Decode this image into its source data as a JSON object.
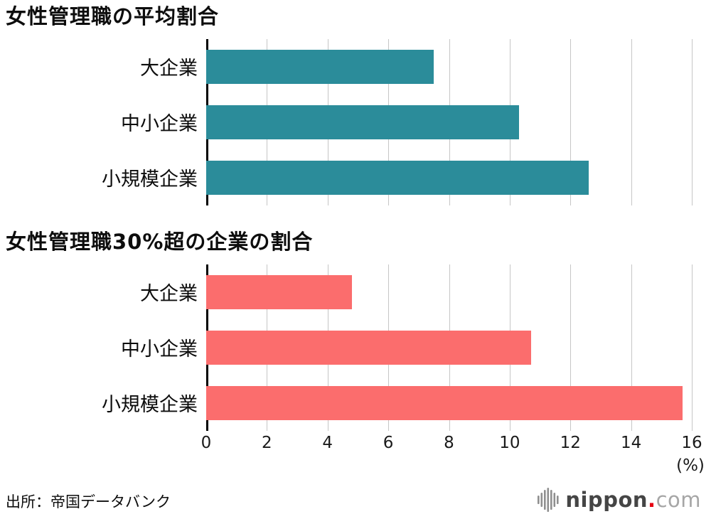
{
  "chart_data": [
    {
      "type": "bar",
      "orientation": "horizontal",
      "title": "女性管理職の平均割合",
      "categories": [
        "大企業",
        "中小企業",
        "小規模企業"
      ],
      "values": [
        7.5,
        10.3,
        12.6
      ],
      "xlim": [
        0,
        16
      ],
      "xticks": [
        0,
        2,
        4,
        6,
        8,
        10,
        12,
        14,
        16
      ],
      "xlabel": "(%)",
      "bar_color": "#2b8c9a",
      "grid": true,
      "legend": false
    },
    {
      "type": "bar",
      "orientation": "horizontal",
      "title": "女性管理職30%超の企業の割合",
      "categories": [
        "大企業",
        "中小企業",
        "小規模企業"
      ],
      "values": [
        4.8,
        10.7,
        15.7
      ],
      "xlim": [
        0,
        16
      ],
      "xticks": [
        0,
        2,
        4,
        6,
        8,
        10,
        12,
        14,
        16
      ],
      "xlabel": "(%)",
      "bar_color": "#fb6d6d",
      "grid": true,
      "legend": false
    }
  ],
  "source": "出所：帝国データバンク",
  "logo": {
    "name": "nippon.com",
    "text_main": "nippon",
    "text_dot": ".",
    "text_suffix": "com",
    "dot_color": "#e60012",
    "mark_color": "#8f8f8f"
  },
  "colors": {
    "teal_bar": "#2b8c9a",
    "pink_bar": "#fb6d6d",
    "gridline": "#c6c6c6",
    "axis_line": "#000000"
  }
}
